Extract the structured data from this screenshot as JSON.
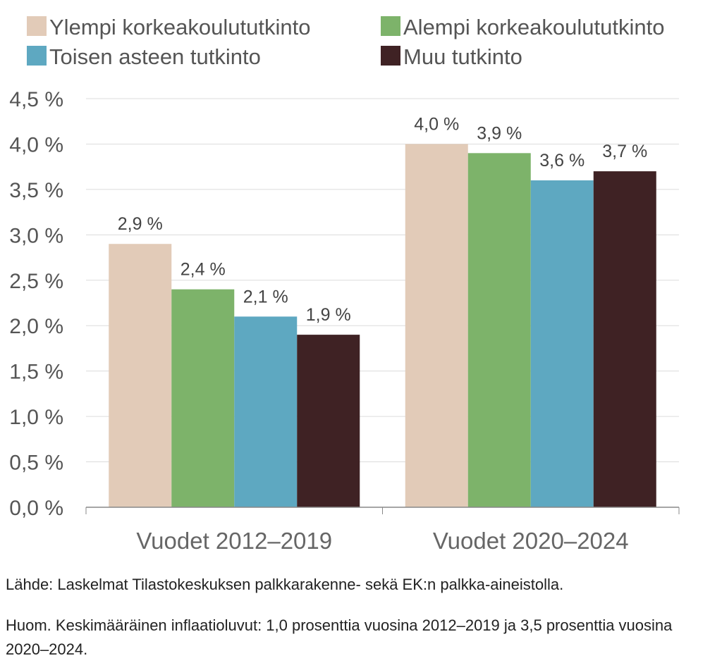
{
  "chart_data": {
    "type": "bar",
    "categories": [
      "Vuodet 2012–2019",
      "Vuodet 2020–2024"
    ],
    "series": [
      {
        "name": "Ylempi korkeakoulututkinto",
        "color": "#e2cbb8",
        "values": [
          2.9,
          4.0
        ],
        "labels": [
          "2,9 %",
          "4,0 %"
        ]
      },
      {
        "name": "Alempi korkeakoulututkinto",
        "color": "#7db36a",
        "values": [
          2.4,
          3.9
        ],
        "labels": [
          "2,4 %",
          "3,9 %"
        ]
      },
      {
        "name": "Toisen asteen tutkinto",
        "color": "#5ea8c1",
        "values": [
          2.1,
          3.6
        ],
        "labels": [
          "2,1 %",
          "3,6 %"
        ]
      },
      {
        "name": "Muu tutkinto",
        "color": "#3f2224",
        "values": [
          1.9,
          3.7
        ],
        "labels": [
          "1,9 %",
          "3,7 %"
        ]
      }
    ],
    "ylim": [
      0,
      4.5
    ],
    "yticks": [
      0,
      0.5,
      1.0,
      1.5,
      2.0,
      2.5,
      3.0,
      3.5,
      4.0,
      4.5
    ],
    "ytick_labels": [
      "0,0 %",
      "0,5 %",
      "1,0 %",
      "1,5 %",
      "2,0 %",
      "2,5 %",
      "3,0 %",
      "3,5 %",
      "4,0 %",
      "4,5 %"
    ],
    "grid": true,
    "legend_position": "top"
  },
  "notes": {
    "source": "Lähde: Laskelmat Tilastokeskuksen palkkarakenne- sekä EK:n palkka-aineistolla.",
    "remark": "Huom. Keskimääräinen inflaatioluvut: 1,0 prosenttia vuosina 2012–2019 ja 3,5 prosenttia vuosina 2020–2024."
  }
}
